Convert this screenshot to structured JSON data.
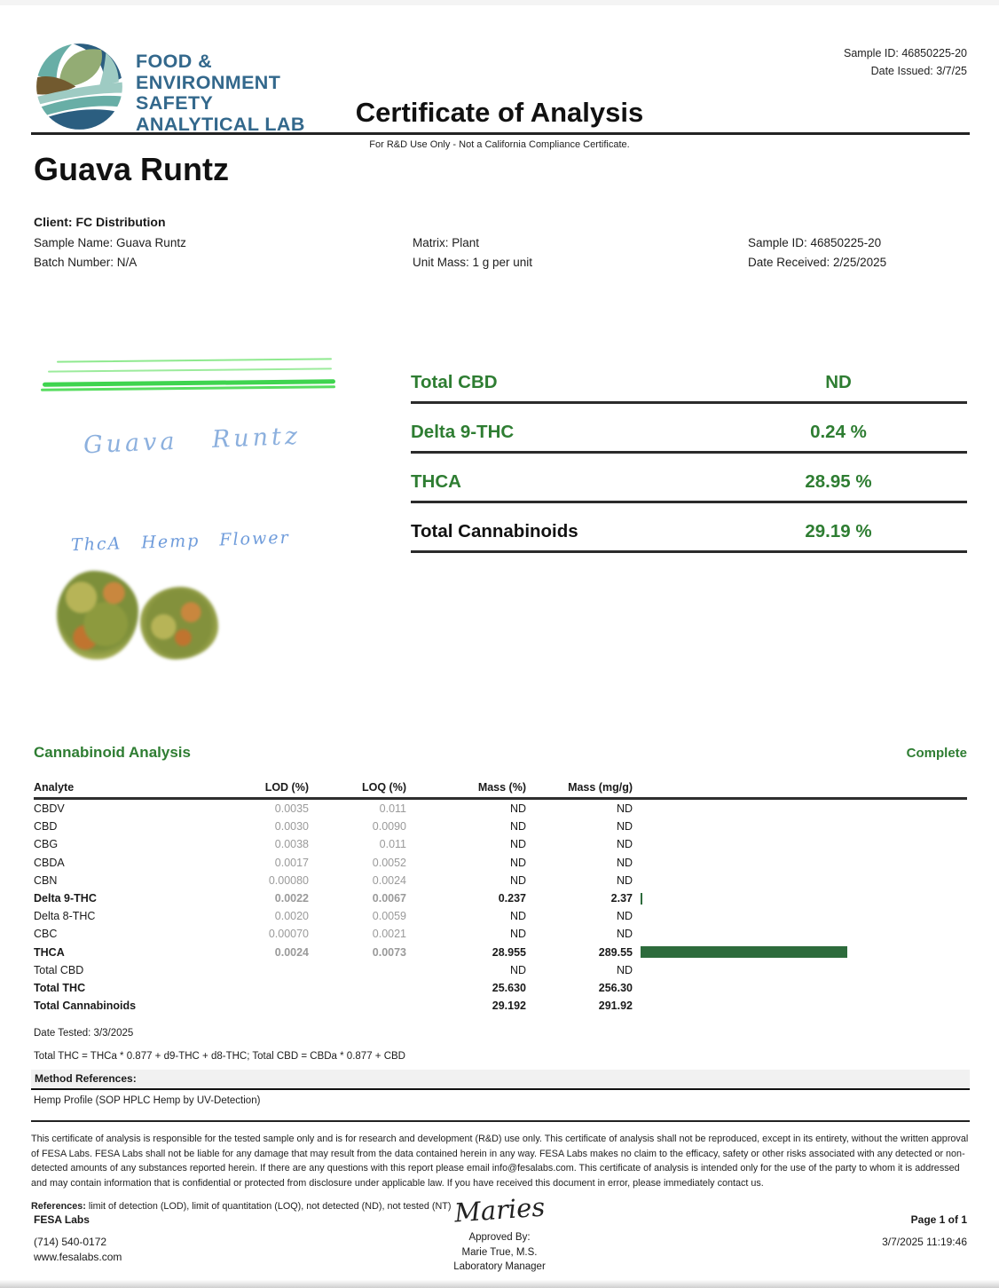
{
  "header": {
    "lab_name_lines": [
      "FOOD &",
      "ENVIRONMENT",
      "SAFETY",
      "ANALYTICAL LAB"
    ],
    "sample_id": "Sample ID: 46850225-20",
    "date_issued": "Date Issued: 3/7/25",
    "title": "Certificate of Analysis",
    "subtitle": "For R&D Use Only - Not a California Compliance Certificate."
  },
  "product": {
    "name": "Guava Runtz",
    "client": "Client: FC Distribution",
    "sample_name": "Sample Name: Guava Runtz",
    "batch_number": "Batch Number: N/A",
    "matrix": "Matrix: Plant",
    "unit_mass": "Unit Mass: 1 g per unit",
    "sample_id": "Sample ID: 46850225-20",
    "date_received": "Date Received: 2/25/2025"
  },
  "sample_photo": {
    "handwriting_line1": "Guava Runtz",
    "handwriting_line2": "ThcA Hemp Flower"
  },
  "summary": {
    "rows": [
      {
        "label": "Total CBD",
        "value": "ND"
      },
      {
        "label": "Delta 9-THC",
        "value": "0.24 %"
      },
      {
        "label": "THCA",
        "value": "28.95 %"
      },
      {
        "label": "Total Cannabinoids",
        "value": "29.19 %"
      }
    ]
  },
  "analysis": {
    "title": "Cannabinoid Analysis",
    "status": "Complete",
    "columns": [
      "Analyte",
      "LOD (%)",
      "LOQ (%)",
      "Mass (%)",
      "Mass (mg/g)"
    ],
    "rows": [
      {
        "analyte": "CBDV",
        "lod": "0.0035",
        "loq": "0.011",
        "mass_pct": "ND",
        "mass_mgg": "ND",
        "bold": false,
        "bar": null
      },
      {
        "analyte": "CBD",
        "lod": "0.0030",
        "loq": "0.0090",
        "mass_pct": "ND",
        "mass_mgg": "ND",
        "bold": false,
        "bar": null
      },
      {
        "analyte": "CBG",
        "lod": "0.0038",
        "loq": "0.011",
        "mass_pct": "ND",
        "mass_mgg": "ND",
        "bold": false,
        "bar": null
      },
      {
        "analyte": "CBDA",
        "lod": "0.0017",
        "loq": "0.0052",
        "mass_pct": "ND",
        "mass_mgg": "ND",
        "bold": false,
        "bar": null
      },
      {
        "analyte": "CBN",
        "lod": "0.00080",
        "loq": "0.0024",
        "mass_pct": "ND",
        "mass_mgg": "ND",
        "bold": false,
        "bar": null
      },
      {
        "analyte": "Delta 9-THC",
        "lod": "0.0022",
        "loq": "0.0067",
        "mass_pct": "0.237",
        "mass_mgg": "2.37",
        "bold": true,
        "bar": 2.37
      },
      {
        "analyte": "Delta 8-THC",
        "lod": "0.0020",
        "loq": "0.0059",
        "mass_pct": "ND",
        "mass_mgg": "ND",
        "bold": false,
        "bar": null
      },
      {
        "analyte": "CBC",
        "lod": "0.00070",
        "loq": "0.0021",
        "mass_pct": "ND",
        "mass_mgg": "ND",
        "bold": false,
        "bar": null
      },
      {
        "analyte": "THCA",
        "lod": "0.0024",
        "loq": "0.0073",
        "mass_pct": "28.955",
        "mass_mgg": "289.55",
        "bold": true,
        "bar": 289.55
      },
      {
        "analyte": "Total CBD",
        "lod": "",
        "loq": "",
        "mass_pct": "ND",
        "mass_mgg": "ND",
        "bold": false,
        "bar": null
      },
      {
        "analyte": "Total THC",
        "lod": "",
        "loq": "",
        "mass_pct": "25.630",
        "mass_mgg": "256.30",
        "bold": true,
        "bar": null
      },
      {
        "analyte": "Total Cannabinoids",
        "lod": "",
        "loq": "",
        "mass_pct": "29.192",
        "mass_mgg": "291.92",
        "bold": true,
        "bar": null
      }
    ]
  },
  "footnotes": {
    "date_tested": "Date Tested: 3/3/2025",
    "formula": "Total THC = THCa * 0.877 + d9-THC + d8-THC; Total CBD = CBDa * 0.877 + CBD",
    "method_label": "Method References:",
    "method_value": "Hemp Profile (SOP HPLC Hemp by UV-Detection)"
  },
  "disclaimer": {
    "text": "This certificate of analysis is responsible for the tested sample only and is for research and development (R&D) use only. This certificate of analysis shall not be reproduced, except in its entirety, without the written approval of FESA Labs. FESA Labs shall not be liable for any damage that may result from the data contained herein in any way. FESA Labs makes no claim to the efficacy, safety or other risks associated with any detected or non-detected amounts of any substances reported herein. If there are any questions with this report please email info@fesalabs.com. This certificate of analysis is intended only for the use of the party to whom it is addressed and may contain information that is confidential or protected from disclosure under applicable law. If you have received this document in error, please immediately contact us.",
    "references_label": "References:",
    "references_text": " limit of detection (LOD), limit of quantitation (LOQ), not detected (ND), not tested (NT)"
  },
  "footer": {
    "company": "FESA Labs",
    "phone": "(714) 540-0172",
    "website": "www.fesalabs.com",
    "signature": "Maries",
    "approved_by": "Approved By:",
    "approver": "Marie True, M.S.",
    "approver_title": "Laboratory Manager",
    "page": "Page 1 of 1",
    "timestamp": "3/7/2025 11:19:46"
  },
  "colors": {
    "accent_green": "#2e7d32",
    "bar_green": "#2d6b3c",
    "logo_blue": "#33688c"
  }
}
